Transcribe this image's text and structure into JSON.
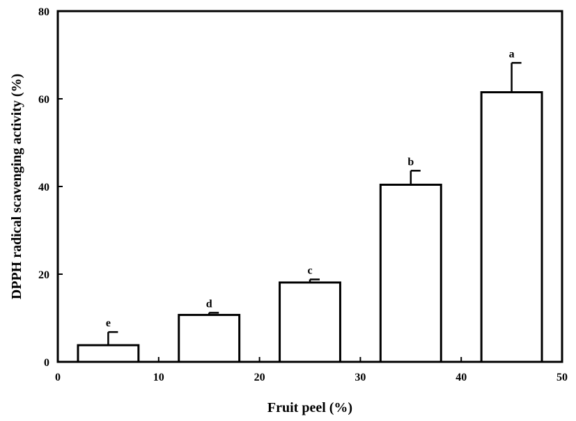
{
  "chart_data": {
    "type": "bar",
    "xlabel": "Fruit peel (%)",
    "ylabel": "DPPH radical scavenging activity (%)",
    "xlim": [
      0,
      50
    ],
    "ylim": [
      0,
      80
    ],
    "xticks": [
      0,
      10,
      20,
      30,
      40,
      50
    ],
    "yticks": [
      0,
      20,
      40,
      60,
      80
    ],
    "bar_width": 6,
    "bars": [
      {
        "x": 5,
        "value": 3.8,
        "error": 3.0,
        "label": "e"
      },
      {
        "x": 15,
        "value": 10.7,
        "error": 0.5,
        "label": "d"
      },
      {
        "x": 25,
        "value": 18.1,
        "error": 0.7,
        "label": "c"
      },
      {
        "x": 35,
        "value": 40.4,
        "error": 3.2,
        "label": "b"
      },
      {
        "x": 45,
        "value": 61.5,
        "error": 6.7,
        "label": "a"
      }
    ],
    "grid": false,
    "legend": "none",
    "colors": {
      "bar_fill": "#ffffff",
      "bar_stroke": "#000000"
    }
  }
}
